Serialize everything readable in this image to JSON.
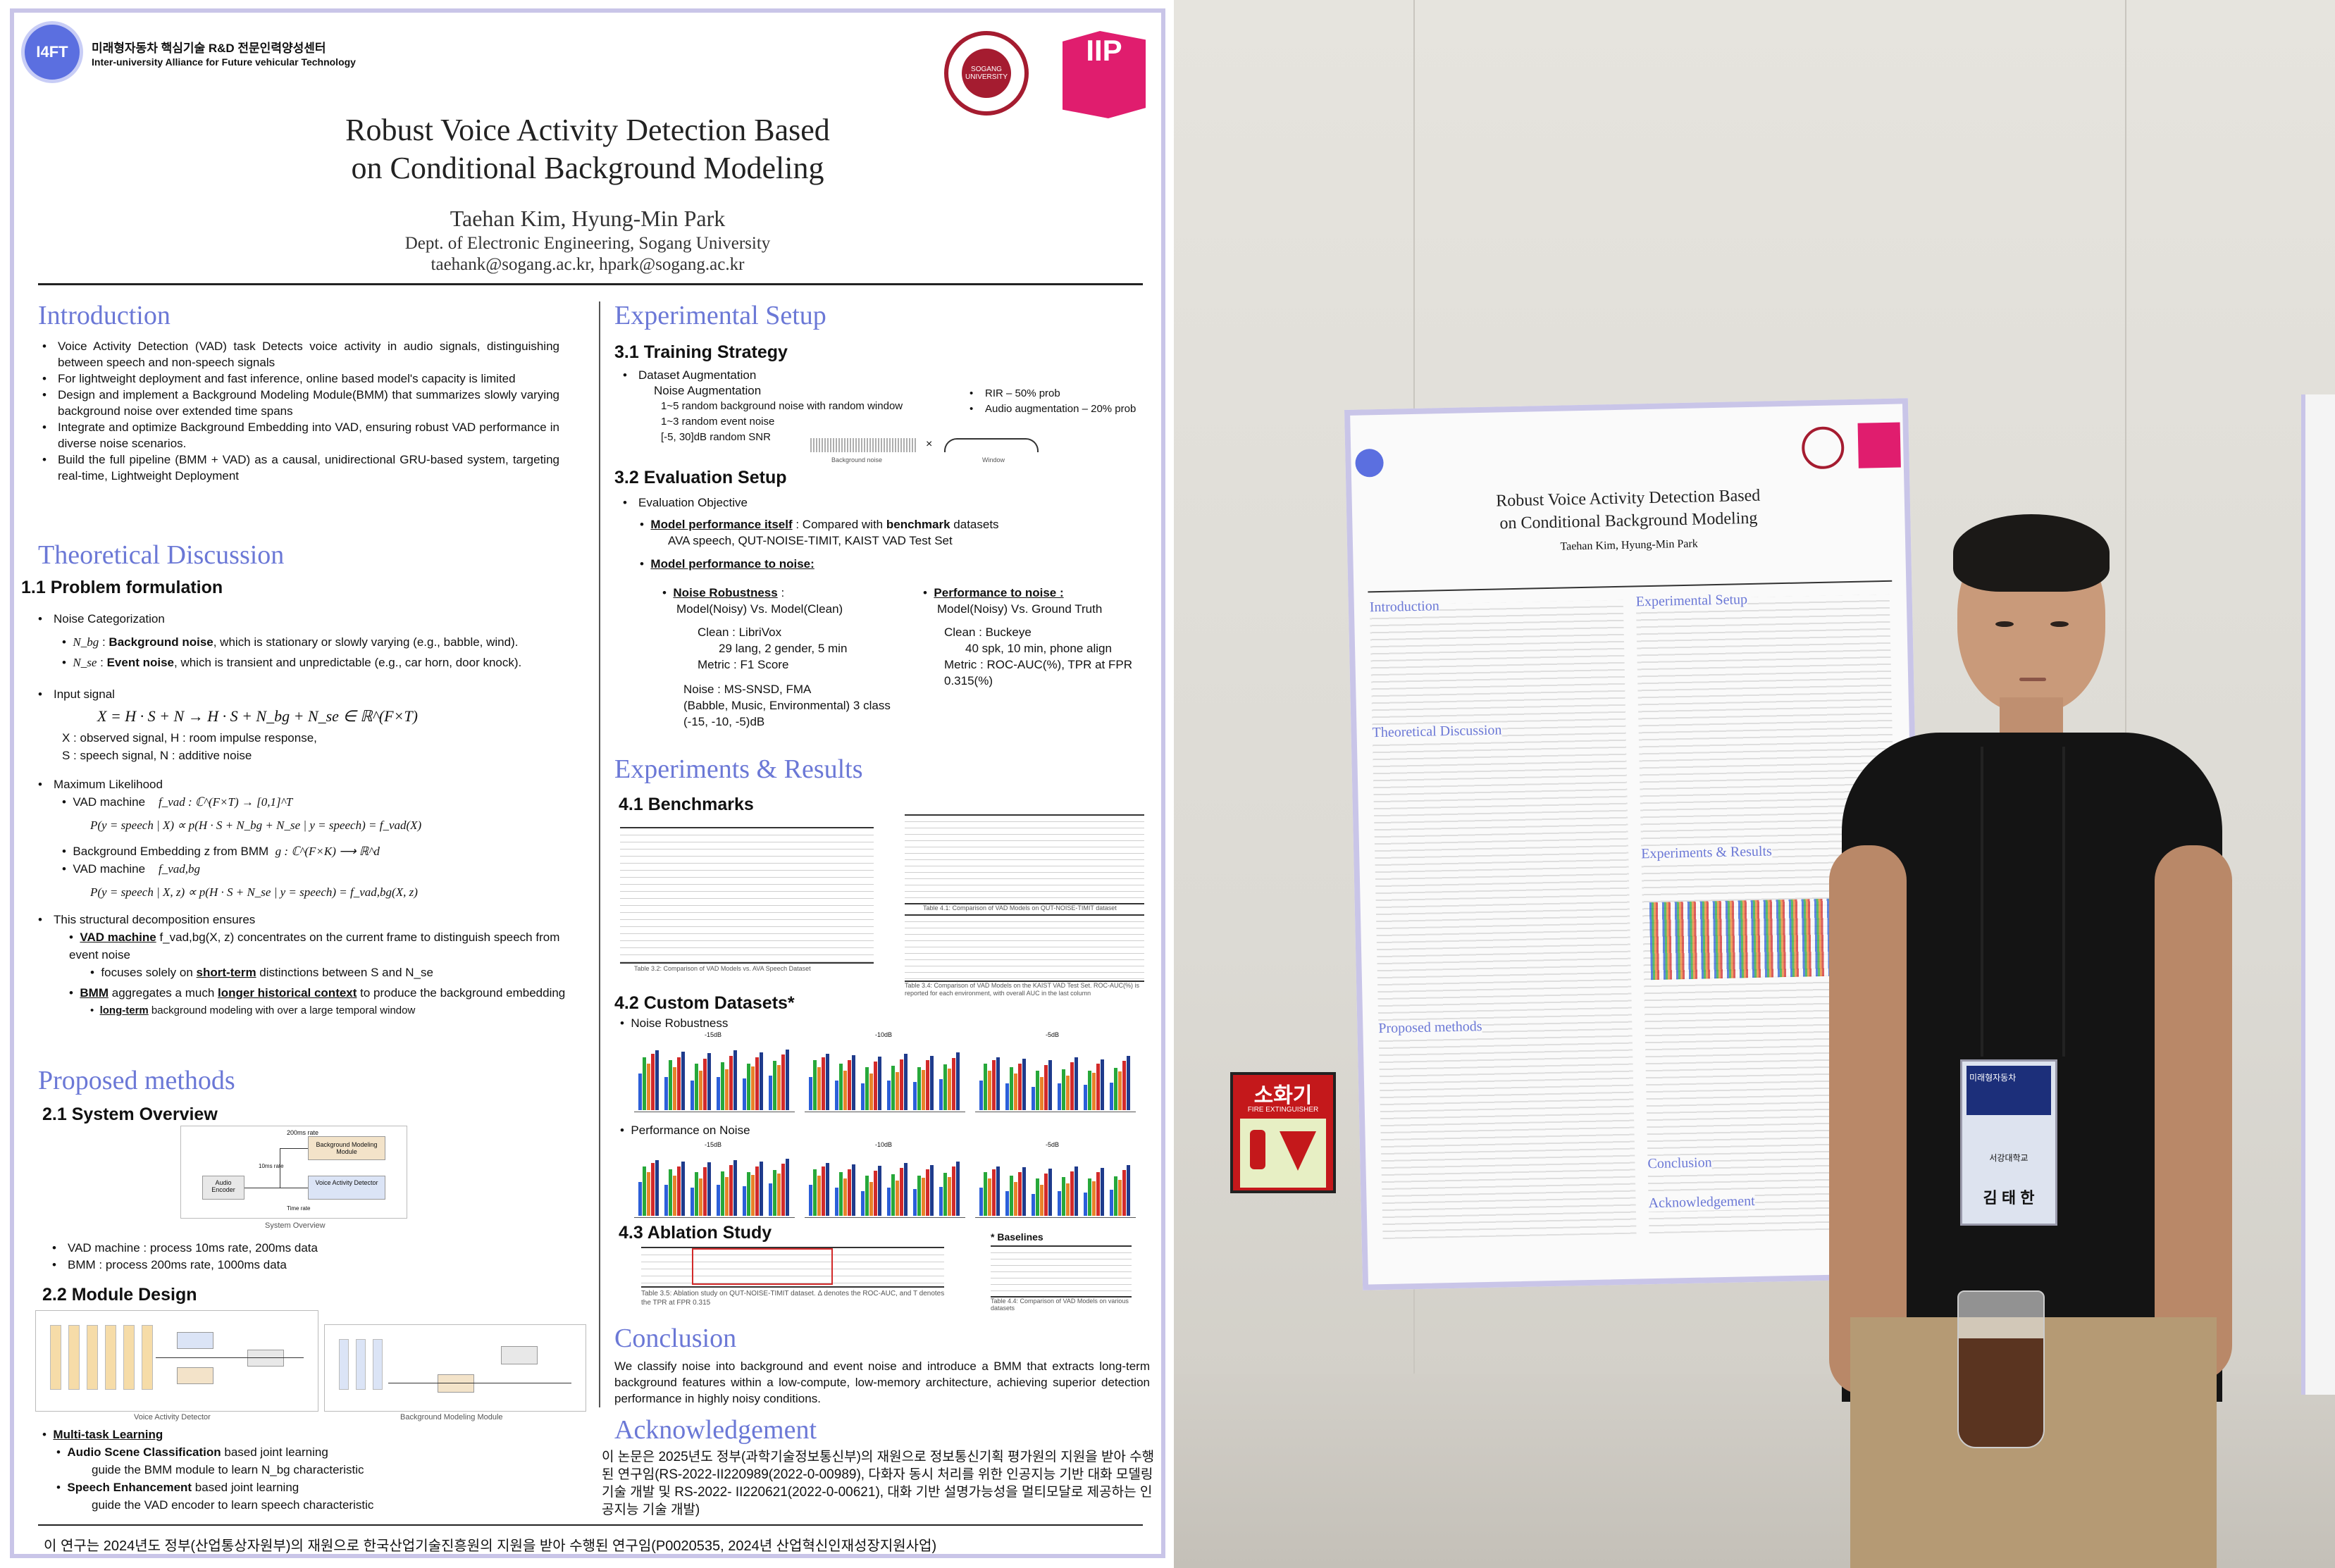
{
  "header": {
    "org_logo_text": "I4FT",
    "org_korean": "미래형자동차 핵심기술 R&D 전문인력양성센터",
    "org_english": "Inter-university Alliance for Future vehicular Technology",
    "univ_logo_text": "SOGANG UNIVERSITY",
    "lab_logo_text": "IIP"
  },
  "title": {
    "line1": "Robust Voice Activity Detection Based",
    "line2": "on Conditional Background Modeling",
    "authors": "Taehan Kim, Hyung-Min Park",
    "affiliation": "Dept. of Electronic Engineering, Sogang University",
    "emails": "taehank@sogang.ac.kr, hpark@sogang.ac.kr"
  },
  "intro": {
    "heading": "Introduction",
    "bullets": [
      "Voice Activity Detection (VAD) task Detects voice activity in audio signals, distinguishing between speech and non-speech signals",
      "For lightweight deployment and fast inference, online based model's capacity is limited",
      "Design and implement a Background Modeling Module(BMM) that summarizes slowly varying background noise over extended time spans",
      "Integrate and optimize Background Embedding into VAD, ensuring robust VAD performance in diverse noise scenarios.",
      "Build the full pipeline (BMM + VAD) as a causal, unidirectional GRU-based system, targeting real-time, Lightweight Deployment"
    ]
  },
  "theory": {
    "heading": "Theoretical Discussion",
    "sub1": "1.1 Problem formulation",
    "noise_cat": "Noise Categorization",
    "nbg_sym": "N_bg",
    "nbg_label": "Background noise",
    "nbg_desc": ", which is stationary or slowly varying (e.g., babble, wind).",
    "nse_sym": "N_se",
    "nse_label": "Event noise",
    "nse_desc": ", which is transient and unpredictable  (e.g., car horn, door knock).",
    "input_signal": "Input signal",
    "eq_input": "X = H · S + N → H · S + N_bg + N_se ∈ ℝ^(F×T)",
    "var1": "X : observed signal,  H : room impulse response,",
    "var2": "S : speech signal,  N : additive noise",
    "ml": "Maximum Likelihood",
    "vad_machine": "VAD machine",
    "vad_fn": "f_vad : ℂ^(F×T) → [0,1]^T",
    "eq_p1": "P(y = speech | X)  ∝  p(H · S + N_bg + N_se | y = speech) = f_vad(X)",
    "bg_embed": "Background Embedding z  from BMM",
    "bg_fn": "g : ℂ^(F×K) ⟶ ℝ^d",
    "vad_machine2": "VAD machine",
    "vad_fn2": "f_vad,bg",
    "eq_p2": "P(y = speech | X, z)  ∝  p(H · S + N_se | y = speech) = f_vad,bg(X, z)",
    "decomp": "This structural decomposition ensures",
    "d1_a": "VAD machine",
    "d1_b": " f_vad,bg(X, z) concentrates on the current frame to distinguish speech from event noise",
    "d1_sub_a": "focuses solely on ",
    "d1_sub_b": "short-term",
    "d1_sub_c": " distinctions between  S  and  N_se",
    "d2_a": "BMM",
    "d2_b": " aggregates a much ",
    "d2_c": "longer historical context",
    "d2_d": " to produce the background embedding",
    "d2_sub_a": "long-term",
    "d2_sub_b": " background modeling with over a large temporal window"
  },
  "proposed": {
    "heading": "Proposed methods",
    "sub1": "2.1 System Overview",
    "fig1_caption": "System Overview",
    "fig1_labels": [
      "Audio Encoder",
      "Background Modeling Module",
      "Voice Activity Detector",
      "200ms rate",
      "10ms rate",
      "Time rate"
    ],
    "b1": "VAD machine : process 10ms rate, 200ms data",
    "b2": "BMM : process 200ms rate, 1000ms data",
    "sub2": "2.2 Module Design",
    "fig2_caption": "Voice Activity Detector",
    "fig3_caption": "Background Modeling Module",
    "mtl": "Multi-task Learning",
    "m1_a": "Audio Scene Classification",
    "m1_b": " based joint learning",
    "m1_sub": "guide the BMM module to learn  N_bg characteristic",
    "m2_a": "Speech Enhancement",
    "m2_b": " based joint learning",
    "m2_sub": "guide the VAD encoder to learn speech characteristic"
  },
  "setup": {
    "heading": "Experimental Setup",
    "sub1": "3.1 Training Strategy",
    "dataset_aug": "Dataset Augmentation",
    "noise_aug": "Noise Augmentation",
    "n1": "1~5 random background noise with random window",
    "n2": "1~3 random event noise",
    "n3": "[-5, 30]dB random SNR",
    "rir": "RIR – 50% prob",
    "audio_aug": "Audio augmentation  – 20% prob",
    "wave_label": "Background noise",
    "window_label": "Window",
    "sub2": "3.2 Evaluation Setup",
    "eval_obj": "Evaluation Objective",
    "mp_a": "Model performance itself",
    "mp_b": " : Compared with ",
    "mp_c": "benchmark",
    "mp_d": " datasets",
    "mp_sub": "AVA speech, QUT-NOISE-TIMIT, KAIST VAD Test Set",
    "mpn": "Model performance to noise:",
    "nr_head": "Noise Robustness",
    "nr_sub": "Model(Noisy) Vs. Model(Clean)",
    "pn_head": "Performance to noise :",
    "pn_sub": "Model(Noisy) Vs. Ground Truth",
    "clean1": "Clean : LibriVox",
    "clean1_sub": "29 lang, 2 gender, 5 min",
    "metric1": "Metric : F1 Score",
    "clean2": "Clean : Buckeye",
    "clean2_sub": "40 spk, 10 min, phone align",
    "metric2": "Metric : ROC-AUC(%), TPR at FPR 0.315(%)",
    "noise1": "Noise : MS-SNSD, FMA",
    "noise2": "(Babble, Music, Environmental) 3 class",
    "noise3": "(-15, -10, -5)dB"
  },
  "results": {
    "heading": "Experiments & Results",
    "sub1": "4.1 Benchmarks",
    "table1_caption": "Table 3.2: Comparison of VAD Models vs. AVA Speech Dataset",
    "table2_caption": "Table 4.1: Comparison of VAD Models on QUT-NOISE-TIMIT dataset",
    "table3_caption": "Table 3.4: Comparison of VAD Models on the KAIST VAD Test Set. ROC-AUC(%) is reported for each environment, with overall AUC in the last column",
    "sub2": "4.2 Custom Datasets*",
    "nr": "Noise Robustness",
    "pon": "Performance on Noise",
    "panel_labels": [
      "-15dB",
      "-10dB",
      "-5dB"
    ],
    "sub3": "4.3 Ablation Study",
    "baselines": "* Baselines",
    "abl_caption": "Table 3.5: Ablation study on QUT-NOISE-TIMIT dataset. Δ denotes the ROC-AUC, and T denotes the TPR at FPR 0.315",
    "base_caption": "Table 4.4: Comparison of VAD Models on various datasets"
  },
  "conclusion": {
    "heading": "Conclusion",
    "text": "We classify noise into background and event noise and introduce a BMM that extracts long-term background features within a low-compute, low-memory architecture, achieving superior detection performance in highly noisy conditions."
  },
  "ack": {
    "heading": "Acknowledgement",
    "text": "이 논문은 2025년도 정부(과학기술정보통신부)의 재원으로 정보통신기획 평가원의 지원을 받아 수행된 연구임(RS-2022-II220989(2022-0-00989), 다화자 동시 처리를 위한 인공지능 기반 대화 모델링 기술 개발 및 RS-2022- II220621(2022-0-00621), 대화 기반 설명가능성을 멀티모달로 제공하는 인공지능 기술 개발)"
  },
  "footer": "이 연구는 2024년도 정부(산업통상자원부)의 재원으로 한국산업기술진흥원의 지원을 받아 수행된 연구임(P0020535, 2024년 산업혁신인재성장지원사업)",
  "photo": {
    "sign_title": "소화기",
    "sign_sub": "FIRE EXTINGUISHER",
    "badge_top": "미래형자동차",
    "badge_name": "김 태 한",
    "badge_org": "서강대학교"
  },
  "chart_series_colors": {
    "blue": "#2b5fd9",
    "green": "#27a83a",
    "orange": "#e8832a",
    "red": "#d22a2a",
    "navy": "#1f3b8c"
  }
}
